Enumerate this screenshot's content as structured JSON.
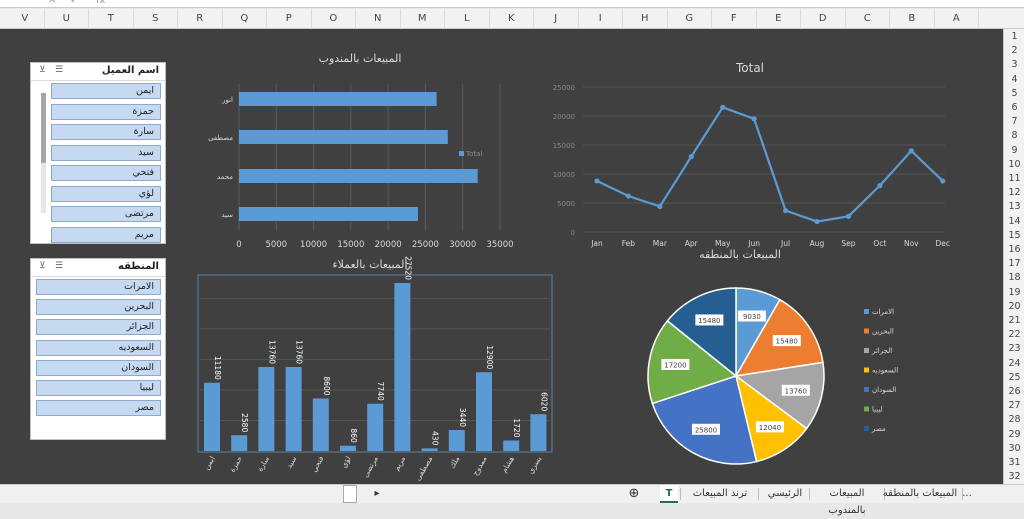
{
  "formula_bar": {
    "fx": "fx"
  },
  "columns": [
    "V",
    "U",
    "T",
    "S",
    "R",
    "Q",
    "P",
    "O",
    "N",
    "M",
    "L",
    "K",
    "J",
    "I",
    "H",
    "G",
    "F",
    "E",
    "D",
    "C",
    "B",
    "A"
  ],
  "rows": [
    "1",
    "2",
    "3",
    "4",
    "5",
    "6",
    "7",
    "8",
    "9",
    "10",
    "11",
    "12",
    "13",
    "14",
    "15",
    "16",
    "17",
    "18",
    "19",
    "20",
    "21",
    "22",
    "23",
    "24",
    "25",
    "26",
    "27",
    "28",
    "29",
    "30",
    "31",
    "32"
  ],
  "slicer_customer": {
    "title": "اسم العميل",
    "items": [
      "ايمن",
      "حمزة",
      "سارة",
      "سيد",
      "فتحي",
      "لؤي",
      "مرتضى",
      "مريم"
    ]
  },
  "slicer_region": {
    "title": "المنطقه",
    "items": [
      "الامرات",
      "البحرين",
      "الجزائر",
      "السعوديه",
      "السودان",
      "ليبيا",
      "مصر"
    ]
  },
  "charts": {
    "rep": {
      "title": "المبيعات بالمندوب"
    },
    "total": {
      "title": "Total"
    },
    "customer": {
      "title": "المبيعات بالعملاء"
    },
    "region": {
      "title": "المبيعات بالمنطقه"
    }
  },
  "chart_data": [
    {
      "type": "bar",
      "orientation": "horizontal",
      "title": "المبيعات بالمندوب",
      "categories": [
        "انور",
        "مصطفى",
        "محمد",
        "سيد"
      ],
      "values": [
        26500,
        28000,
        32000,
        24000
      ],
      "legend": "Total",
      "legend_position": "right",
      "xlim": [
        0,
        35000
      ],
      "xticks": [
        "0",
        "5000",
        "10000",
        "15000",
        "20000",
        "25000",
        "30000",
        "35000"
      ],
      "color": "#5b9bd5"
    },
    {
      "type": "line",
      "title": "Total",
      "x": [
        "Jan",
        "Feb",
        "Mar",
        "Apr",
        "May",
        "Jun",
        "Jul",
        "Aug",
        "Sep",
        "Oct",
        "Nov",
        "Dec"
      ],
      "y": [
        8800,
        6200,
        4400,
        13000,
        21500,
        19500,
        3700,
        1800,
        2700,
        8000,
        14000,
        8800
      ],
      "ylim": [
        0,
        25000
      ],
      "yticks": [
        "25000",
        "20000",
        "15000",
        "10000",
        "5000",
        "0"
      ],
      "grid": true,
      "color": "#5b9bd5"
    },
    {
      "type": "bar",
      "title": "المبيعات بالعملاء",
      "categories": [
        "ايمن",
        "حمزة",
        "سارة",
        "سيد",
        "فتحي",
        "لؤي",
        "مرتضى",
        "مريم",
        "مصطفى",
        "ملك",
        "ممدوح",
        "هشام",
        "يسري"
      ],
      "values": [
        11180,
        2580,
        13760,
        13760,
        8600,
        860,
        7740,
        27520,
        430,
        3440,
        12900,
        1720,
        6020
      ],
      "labels": [
        "11180",
        "2580",
        "13760",
        "13760",
        "8600",
        "860",
        "7740",
        "27520",
        "430",
        "3440",
        "12900",
        "1720",
        "6020"
      ],
      "ylim": [
        0,
        28500
      ],
      "grid": true,
      "color": "#5b9bd5"
    },
    {
      "type": "pie",
      "title": "المبيعات بالمنطقه",
      "categories": [
        "الامرات",
        "البحرين",
        "الجزائر",
        "السعوديه",
        "السودان",
        "ليبيا",
        "مصر"
      ],
      "values": [
        9030,
        15480,
        13760,
        12040,
        25800,
        17200,
        15480
      ],
      "labels": [
        "9030",
        "15480",
        "13760",
        "12040",
        "25800",
        "17200",
        "15480"
      ],
      "colors": [
        "#5b9bd5",
        "#ed7d31",
        "#a5a5a5",
        "#ffc000",
        "#4472c4",
        "#70ad47",
        "#255e91"
      ],
      "legend_position": "right"
    }
  ],
  "tabs": [
    "T",
    "ترند المبيعات",
    "الرئيسي",
    "المبيعات بالمندوب",
    "المبيعات بالمنطقه",
    "..."
  ]
}
